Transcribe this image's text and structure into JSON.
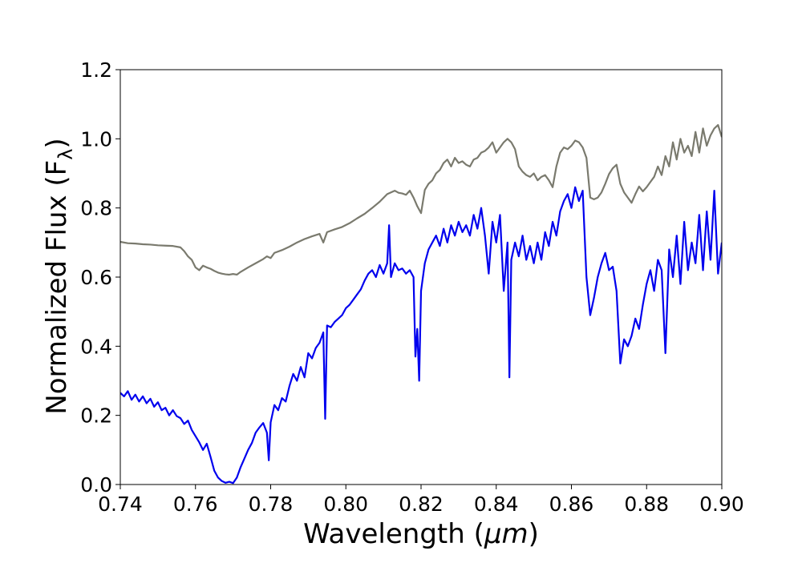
{
  "chart_data": {
    "type": "line",
    "title": "",
    "xlabel": "Wavelength (μm)",
    "xlabel_parts": {
      "prefix": "Wavelength (",
      "italic": "μm",
      "suffix": ")"
    },
    "ylabel": "Normalized Flux (Fλ)",
    "ylabel_parts": {
      "prefix": "Normalized Flux (F",
      "sub": "λ",
      "suffix": ")"
    },
    "xlim": [
      0.74,
      0.9
    ],
    "ylim": [
      0.0,
      1.2
    ],
    "xticks": [
      0.74,
      0.76,
      0.78,
      0.8,
      0.82,
      0.84,
      0.86,
      0.88,
      0.9
    ],
    "xtick_labels": [
      "0.74",
      "0.76",
      "0.78",
      "0.80",
      "0.82",
      "0.84",
      "0.86",
      "0.88",
      "0.90"
    ],
    "yticks": [
      0.0,
      0.2,
      0.4,
      0.6,
      0.8,
      1.0,
      1.2
    ],
    "ytick_labels": [
      "0.0",
      "0.2",
      "0.4",
      "0.6",
      "0.8",
      "1.0",
      "1.2"
    ],
    "grid": false,
    "legend": "none",
    "series": [
      {
        "color": "#7a7a6e",
        "points": [
          [
            0.74,
            0.702
          ],
          [
            0.742,
            0.698
          ],
          [
            0.744,
            0.697
          ],
          [
            0.746,
            0.695
          ],
          [
            0.748,
            0.694
          ],
          [
            0.75,
            0.692
          ],
          [
            0.752,
            0.691
          ],
          [
            0.754,
            0.69
          ],
          [
            0.756,
            0.686
          ],
          [
            0.757,
            0.675
          ],
          [
            0.758,
            0.66
          ],
          [
            0.759,
            0.65
          ],
          [
            0.76,
            0.628
          ],
          [
            0.761,
            0.62
          ],
          [
            0.762,
            0.633
          ],
          [
            0.763,
            0.628
          ],
          [
            0.764,
            0.624
          ],
          [
            0.765,
            0.618
          ],
          [
            0.766,
            0.613
          ],
          [
            0.767,
            0.61
          ],
          [
            0.768,
            0.608
          ],
          [
            0.769,
            0.607
          ],
          [
            0.77,
            0.609
          ],
          [
            0.771,
            0.607
          ],
          [
            0.772,
            0.615
          ],
          [
            0.774,
            0.628
          ],
          [
            0.776,
            0.64
          ],
          [
            0.778,
            0.652
          ],
          [
            0.779,
            0.66
          ],
          [
            0.78,
            0.655
          ],
          [
            0.781,
            0.67
          ],
          [
            0.783,
            0.678
          ],
          [
            0.785,
            0.688
          ],
          [
            0.787,
            0.7
          ],
          [
            0.789,
            0.71
          ],
          [
            0.791,
            0.718
          ],
          [
            0.793,
            0.725
          ],
          [
            0.794,
            0.7
          ],
          [
            0.795,
            0.73
          ],
          [
            0.797,
            0.738
          ],
          [
            0.799,
            0.745
          ],
          [
            0.801,
            0.756
          ],
          [
            0.803,
            0.77
          ],
          [
            0.805,
            0.783
          ],
          [
            0.807,
            0.8
          ],
          [
            0.809,
            0.818
          ],
          [
            0.811,
            0.84
          ],
          [
            0.812,
            0.845
          ],
          [
            0.813,
            0.85
          ],
          [
            0.814,
            0.844
          ],
          [
            0.815,
            0.842
          ],
          [
            0.816,
            0.838
          ],
          [
            0.817,
            0.85
          ],
          [
            0.818,
            0.83
          ],
          [
            0.819,
            0.805
          ],
          [
            0.82,
            0.785
          ],
          [
            0.821,
            0.852
          ],
          [
            0.822,
            0.87
          ],
          [
            0.823,
            0.88
          ],
          [
            0.824,
            0.9
          ],
          [
            0.825,
            0.91
          ],
          [
            0.826,
            0.93
          ],
          [
            0.827,
            0.94
          ],
          [
            0.828,
            0.92
          ],
          [
            0.829,
            0.945
          ],
          [
            0.83,
            0.93
          ],
          [
            0.831,
            0.935
          ],
          [
            0.832,
            0.925
          ],
          [
            0.833,
            0.92
          ],
          [
            0.834,
            0.94
          ],
          [
            0.835,
            0.945
          ],
          [
            0.836,
            0.96
          ],
          [
            0.837,
            0.965
          ],
          [
            0.838,
            0.975
          ],
          [
            0.839,
            0.99
          ],
          [
            0.84,
            0.96
          ],
          [
            0.841,
            0.975
          ],
          [
            0.842,
            0.99
          ],
          [
            0.843,
            1.0
          ],
          [
            0.844,
            0.99
          ],
          [
            0.845,
            0.97
          ],
          [
            0.846,
            0.92
          ],
          [
            0.847,
            0.905
          ],
          [
            0.848,
            0.895
          ],
          [
            0.849,
            0.89
          ],
          [
            0.85,
            0.9
          ],
          [
            0.851,
            0.88
          ],
          [
            0.852,
            0.89
          ],
          [
            0.853,
            0.895
          ],
          [
            0.854,
            0.88
          ],
          [
            0.855,
            0.86
          ],
          [
            0.856,
            0.92
          ],
          [
            0.857,
            0.96
          ],
          [
            0.858,
            0.975
          ],
          [
            0.859,
            0.97
          ],
          [
            0.86,
            0.98
          ],
          [
            0.861,
            0.995
          ],
          [
            0.862,
            0.99
          ],
          [
            0.863,
            0.975
          ],
          [
            0.864,
            0.945
          ],
          [
            0.865,
            0.83
          ],
          [
            0.866,
            0.825
          ],
          [
            0.867,
            0.83
          ],
          [
            0.868,
            0.845
          ],
          [
            0.869,
            0.87
          ],
          [
            0.87,
            0.898
          ],
          [
            0.871,
            0.915
          ],
          [
            0.872,
            0.925
          ],
          [
            0.873,
            0.87
          ],
          [
            0.874,
            0.845
          ],
          [
            0.875,
            0.83
          ],
          [
            0.876,
            0.815
          ],
          [
            0.877,
            0.84
          ],
          [
            0.878,
            0.862
          ],
          [
            0.879,
            0.848
          ],
          [
            0.88,
            0.86
          ],
          [
            0.881,
            0.875
          ],
          [
            0.882,
            0.89
          ],
          [
            0.883,
            0.92
          ],
          [
            0.884,
            0.895
          ],
          [
            0.885,
            0.95
          ],
          [
            0.886,
            0.92
          ],
          [
            0.887,
            0.99
          ],
          [
            0.888,
            0.94
          ],
          [
            0.889,
            1.0
          ],
          [
            0.89,
            0.96
          ],
          [
            0.891,
            0.98
          ],
          [
            0.892,
            0.95
          ],
          [
            0.893,
            1.02
          ],
          [
            0.894,
            0.96
          ],
          [
            0.895,
            1.03
          ],
          [
            0.896,
            0.98
          ],
          [
            0.897,
            1.01
          ],
          [
            0.898,
            1.03
          ],
          [
            0.899,
            1.04
          ],
          [
            0.9,
            1.005
          ]
        ]
      },
      {
        "color": "#0000ee",
        "points": [
          [
            0.74,
            0.265
          ],
          [
            0.741,
            0.255
          ],
          [
            0.742,
            0.27
          ],
          [
            0.743,
            0.245
          ],
          [
            0.744,
            0.26
          ],
          [
            0.745,
            0.24
          ],
          [
            0.746,
            0.255
          ],
          [
            0.747,
            0.235
          ],
          [
            0.748,
            0.248
          ],
          [
            0.749,
            0.225
          ],
          [
            0.75,
            0.238
          ],
          [
            0.751,
            0.215
          ],
          [
            0.752,
            0.222
          ],
          [
            0.753,
            0.2
          ],
          [
            0.754,
            0.215
          ],
          [
            0.755,
            0.198
          ],
          [
            0.756,
            0.192
          ],
          [
            0.757,
            0.175
          ],
          [
            0.758,
            0.185
          ],
          [
            0.759,
            0.158
          ],
          [
            0.76,
            0.14
          ],
          [
            0.761,
            0.122
          ],
          [
            0.762,
            0.1
          ],
          [
            0.763,
            0.118
          ],
          [
            0.764,
            0.08
          ],
          [
            0.765,
            0.04
          ],
          [
            0.766,
            0.02
          ],
          [
            0.767,
            0.01
          ],
          [
            0.768,
            0.005
          ],
          [
            0.769,
            0.008
          ],
          [
            0.77,
            0.004
          ],
          [
            0.771,
            0.02
          ],
          [
            0.772,
            0.05
          ],
          [
            0.773,
            0.075
          ],
          [
            0.774,
            0.1
          ],
          [
            0.775,
            0.12
          ],
          [
            0.776,
            0.15
          ],
          [
            0.777,
            0.165
          ],
          [
            0.778,
            0.178
          ],
          [
            0.779,
            0.15
          ],
          [
            0.7795,
            0.07
          ],
          [
            0.78,
            0.18
          ],
          [
            0.781,
            0.23
          ],
          [
            0.782,
            0.215
          ],
          [
            0.783,
            0.25
          ],
          [
            0.784,
            0.24
          ],
          [
            0.785,
            0.285
          ],
          [
            0.786,
            0.32
          ],
          [
            0.787,
            0.3
          ],
          [
            0.788,
            0.34
          ],
          [
            0.789,
            0.31
          ],
          [
            0.79,
            0.38
          ],
          [
            0.791,
            0.365
          ],
          [
            0.792,
            0.395
          ],
          [
            0.793,
            0.41
          ],
          [
            0.794,
            0.44
          ],
          [
            0.7945,
            0.19
          ],
          [
            0.795,
            0.46
          ],
          [
            0.796,
            0.455
          ],
          [
            0.797,
            0.47
          ],
          [
            0.798,
            0.48
          ],
          [
            0.799,
            0.49
          ],
          [
            0.8,
            0.51
          ],
          [
            0.801,
            0.52
          ],
          [
            0.802,
            0.535
          ],
          [
            0.803,
            0.55
          ],
          [
            0.804,
            0.565
          ],
          [
            0.805,
            0.59
          ],
          [
            0.806,
            0.61
          ],
          [
            0.807,
            0.62
          ],
          [
            0.808,
            0.6
          ],
          [
            0.809,
            0.635
          ],
          [
            0.81,
            0.61
          ],
          [
            0.811,
            0.64
          ],
          [
            0.8115,
            0.75
          ],
          [
            0.812,
            0.6
          ],
          [
            0.813,
            0.64
          ],
          [
            0.814,
            0.62
          ],
          [
            0.815,
            0.625
          ],
          [
            0.816,
            0.61
          ],
          [
            0.817,
            0.62
          ],
          [
            0.818,
            0.6
          ],
          [
            0.8185,
            0.37
          ],
          [
            0.819,
            0.45
          ],
          [
            0.8195,
            0.3
          ],
          [
            0.82,
            0.56
          ],
          [
            0.821,
            0.64
          ],
          [
            0.822,
            0.68
          ],
          [
            0.823,
            0.7
          ],
          [
            0.824,
            0.72
          ],
          [
            0.825,
            0.69
          ],
          [
            0.826,
            0.74
          ],
          [
            0.827,
            0.7
          ],
          [
            0.828,
            0.75
          ],
          [
            0.829,
            0.72
          ],
          [
            0.83,
            0.76
          ],
          [
            0.831,
            0.73
          ],
          [
            0.832,
            0.75
          ],
          [
            0.833,
            0.72
          ],
          [
            0.834,
            0.78
          ],
          [
            0.835,
            0.74
          ],
          [
            0.836,
            0.8
          ],
          [
            0.837,
            0.72
          ],
          [
            0.838,
            0.61
          ],
          [
            0.839,
            0.76
          ],
          [
            0.84,
            0.7
          ],
          [
            0.841,
            0.78
          ],
          [
            0.842,
            0.56
          ],
          [
            0.843,
            0.7
          ],
          [
            0.8435,
            0.31
          ],
          [
            0.844,
            0.65
          ],
          [
            0.845,
            0.7
          ],
          [
            0.846,
            0.66
          ],
          [
            0.847,
            0.72
          ],
          [
            0.848,
            0.65
          ],
          [
            0.849,
            0.69
          ],
          [
            0.85,
            0.64
          ],
          [
            0.851,
            0.7
          ],
          [
            0.852,
            0.65
          ],
          [
            0.853,
            0.73
          ],
          [
            0.854,
            0.69
          ],
          [
            0.855,
            0.76
          ],
          [
            0.856,
            0.72
          ],
          [
            0.857,
            0.79
          ],
          [
            0.858,
            0.82
          ],
          [
            0.859,
            0.84
          ],
          [
            0.86,
            0.8
          ],
          [
            0.861,
            0.86
          ],
          [
            0.862,
            0.82
          ],
          [
            0.863,
            0.85
          ],
          [
            0.864,
            0.6
          ],
          [
            0.865,
            0.49
          ],
          [
            0.866,
            0.54
          ],
          [
            0.867,
            0.6
          ],
          [
            0.868,
            0.64
          ],
          [
            0.869,
            0.67
          ],
          [
            0.87,
            0.62
          ],
          [
            0.871,
            0.63
          ],
          [
            0.872,
            0.56
          ],
          [
            0.873,
            0.35
          ],
          [
            0.874,
            0.42
          ],
          [
            0.875,
            0.4
          ],
          [
            0.876,
            0.43
          ],
          [
            0.877,
            0.48
          ],
          [
            0.878,
            0.45
          ],
          [
            0.879,
            0.52
          ],
          [
            0.88,
            0.58
          ],
          [
            0.881,
            0.62
          ],
          [
            0.882,
            0.56
          ],
          [
            0.883,
            0.65
          ],
          [
            0.884,
            0.62
          ],
          [
            0.885,
            0.38
          ],
          [
            0.886,
            0.68
          ],
          [
            0.887,
            0.6
          ],
          [
            0.888,
            0.72
          ],
          [
            0.889,
            0.58
          ],
          [
            0.89,
            0.76
          ],
          [
            0.891,
            0.62
          ],
          [
            0.892,
            0.7
          ],
          [
            0.893,
            0.64
          ],
          [
            0.894,
            0.78
          ],
          [
            0.895,
            0.62
          ],
          [
            0.896,
            0.79
          ],
          [
            0.897,
            0.65
          ],
          [
            0.898,
            0.85
          ],
          [
            0.899,
            0.61
          ],
          [
            0.9,
            0.7
          ]
        ]
      }
    ]
  }
}
